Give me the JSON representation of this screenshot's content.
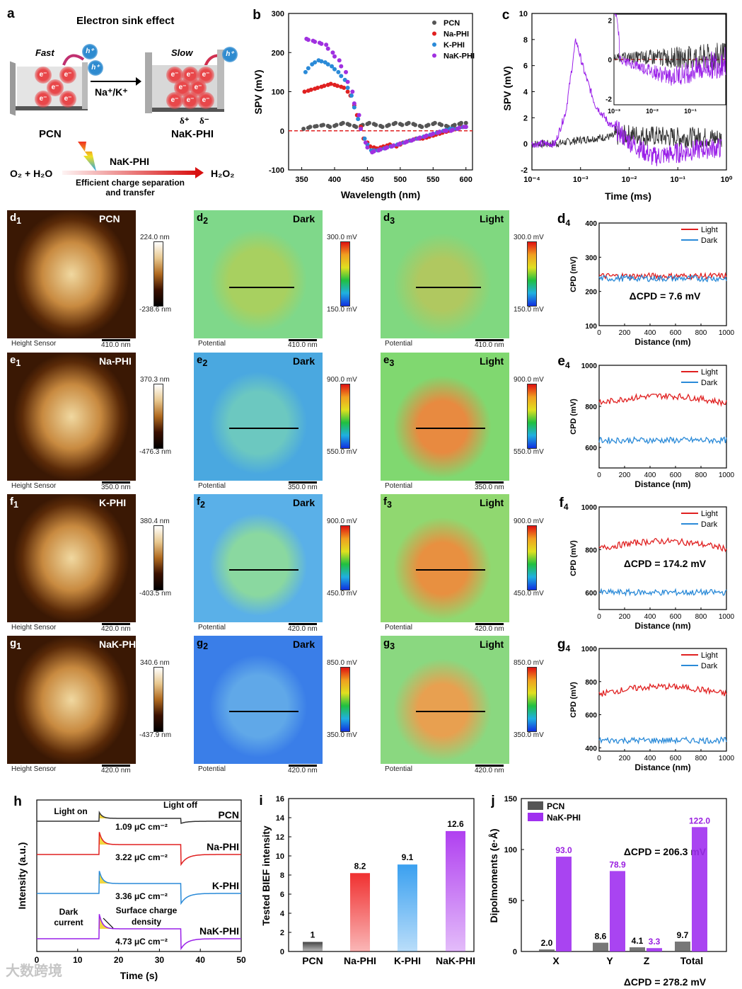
{
  "panel_a": {
    "letter": "a",
    "title": "Electron sink effect",
    "fast": "Fast",
    "slow": "Slow",
    "electron": "e⁻",
    "hole": "h⁺",
    "ions": "Na⁺/K⁺",
    "left_label": "PCN",
    "right_label": "NaK-PHI",
    "delta_plus": "δ⁺",
    "delta_minus": "δ⁻",
    "catalyst": "NaK-PHI",
    "reactants": "O₂ + H₂O",
    "product": "H₂O₂",
    "caption_line1": "Efficient charge separation",
    "caption_line2": "and transfer"
  },
  "chart_data": [
    {
      "id": "b",
      "type": "scatter",
      "letter": "b",
      "xlabel": "Wavelength (nm)",
      "ylabel": "SPV (mV)",
      "xlim": [
        330,
        610
      ],
      "ylim": [
        -100,
        300
      ],
      "xticks": [
        350,
        400,
        450,
        500,
        550,
        600
      ],
      "yticks": [
        -100,
        0,
        100,
        200,
        300
      ],
      "x": [
        355,
        365,
        375,
        385,
        395,
        405,
        415,
        425,
        435,
        445,
        455,
        465,
        475,
        485,
        495,
        505,
        515,
        525,
        535,
        545,
        555,
        565,
        575,
        585,
        595
      ],
      "series": [
        {
          "name": "PCN",
          "color": "#555555",
          "values": [
            5,
            10,
            12,
            15,
            10,
            15,
            20,
            15,
            10,
            15,
            20,
            15,
            10,
            15,
            20,
            15,
            20,
            15,
            10,
            15,
            20,
            15,
            10,
            15,
            20
          ]
        },
        {
          "name": "Na-PHI",
          "color": "#e02020",
          "values": [
            100,
            105,
            110,
            115,
            120,
            115,
            110,
            90,
            40,
            -20,
            -40,
            -45,
            -40,
            -35,
            -40,
            -30,
            -25,
            -20,
            -20,
            -15,
            -10,
            -5,
            0,
            5,
            10
          ]
        },
        {
          "name": "K-PHI",
          "color": "#2a8ad8",
          "values": [
            150,
            170,
            180,
            175,
            165,
            150,
            130,
            90,
            30,
            -20,
            -50,
            -50,
            -45,
            -40,
            -35,
            -30,
            -25,
            -20,
            -15,
            -10,
            -5,
            0,
            5,
            5,
            10
          ]
        },
        {
          "name": "NaK-PHI",
          "color": "#a030e0",
          "values": [
            235,
            230,
            225,
            220,
            200,
            180,
            150,
            100,
            40,
            -30,
            -55,
            -50,
            -45,
            -40,
            -35,
            -30,
            -25,
            -20,
            -15,
            -10,
            -5,
            0,
            0,
            5,
            10
          ]
        }
      ]
    },
    {
      "id": "c",
      "type": "line",
      "letter": "c",
      "xlabel": "Time (ms)",
      "ylabel": "SPV (mV)",
      "xscale": "log",
      "xlim": [
        0.0001,
        1
      ],
      "ylim": [
        -2,
        10
      ],
      "xticks": [
        "10⁻⁴",
        "10⁻³",
        "10⁻²",
        "10⁻¹",
        "10⁰"
      ],
      "yticks": [
        -2,
        0,
        2,
        4,
        6,
        8,
        10
      ],
      "series": [
        {
          "name": "PCN",
          "color": "#333333",
          "x": [
            0.0001,
            0.0003,
            0.001,
            0.003,
            0.01,
            0.03,
            0.1,
            0.3,
            0.8
          ],
          "values": [
            0,
            0,
            0.3,
            0.5,
            0.7,
            0.6,
            0.5,
            0.5,
            0.4
          ]
        },
        {
          "name": "NaK-PHI",
          "color": "#9a20e8",
          "x": [
            0.0001,
            0.0003,
            0.0005,
            0.0008,
            0.0012,
            0.002,
            0.004,
            0.01,
            0.03,
            0.1,
            0.3,
            0.8
          ],
          "values": [
            0,
            0,
            2.5,
            8,
            5.5,
            3,
            1.5,
            0.2,
            -1,
            -0.7,
            -0.4,
            -0.3
          ]
        }
      ],
      "inset": {
        "yticks": [
          -2,
          0,
          2
        ],
        "xticks": [
          "10⁻³",
          "10⁻²",
          "10⁻¹"
        ]
      }
    },
    {
      "id": "h",
      "type": "line",
      "letter": "h",
      "xlabel": "Time (s)",
      "ylabel": "Intensity (a.u.)",
      "xlim": [
        0,
        50
      ],
      "xticks": [
        0,
        10,
        20,
        30,
        40,
        50
      ],
      "light_on": "Light on",
      "light_off": "Light off",
      "dark_current": "Dark current",
      "surface_charge": "Surface charge density",
      "series": [
        {
          "name": "PCN",
          "color": "#333333",
          "charge": "1.09 μC cm⁻²",
          "peak": 0.4
        },
        {
          "name": "Na-PHI",
          "color": "#e02020",
          "charge": "3.22 μC cm⁻²",
          "peak": 1
        },
        {
          "name": "K-PHI",
          "color": "#2a8ad8",
          "charge": "3.36 μC cm⁻²",
          "peak": 1
        },
        {
          "name": "NaK-PHI",
          "color": "#9a20e8",
          "charge": "4.73 μC cm⁻²",
          "peak": 1.1
        }
      ]
    },
    {
      "id": "i",
      "type": "bar",
      "letter": "i",
      "ylabel": "Tested BIEF intensity",
      "ylim": [
        0,
        16
      ],
      "yticks": [
        0,
        2,
        4,
        6,
        8,
        10,
        12,
        14,
        16
      ],
      "categories": [
        "PCN",
        "Na-PHI",
        "K-PHI",
        "NaK-PHI"
      ],
      "values": [
        1,
        8.2,
        9.1,
        12.6
      ],
      "value_labels": [
        "1",
        "8.2",
        "9.1",
        "12.6"
      ],
      "colors": [
        "#444444",
        "#f03030",
        "#3aa0f0",
        "#b040f0"
      ]
    },
    {
      "id": "j",
      "type": "bar",
      "letter": "j",
      "ylabel": "Dipolmoments (e·Å)",
      "ylim": [
        0,
        150
      ],
      "yticks": [
        0,
        50,
        100,
        150
      ],
      "categories": [
        "X",
        "Y",
        "Z",
        "Total"
      ],
      "series": [
        {
          "name": "PCN",
          "color": "#555555",
          "values": [
            2.0,
            8.6,
            4.1,
            9.7
          ],
          "labels": [
            "2.0",
            "8.6",
            "4.1",
            "9.7"
          ]
        },
        {
          "name": "NaK-PHI",
          "color": "#a030f0",
          "values": [
            93.0,
            78.9,
            3.3,
            122.0
          ],
          "labels": [
            "93.0",
            "78.9",
            "3.3",
            "122.0"
          ]
        }
      ]
    }
  ],
  "kpfm_rows": [
    {
      "id": "d",
      "sample": "PCN",
      "height_max": "224.0 nm",
      "height_min": "-238.6 nm",
      "pot_max": "300.0 mV",
      "pot_min": "150.0 mV",
      "scale": "410.0 nm",
      "cpd": "ΔCPD = 7.6 mV",
      "ylim": [
        100,
        400
      ],
      "yticks": [
        100,
        200,
        300,
        400
      ],
      "light": 245,
      "dark": 238
    },
    {
      "id": "e",
      "sample": "Na-PHI",
      "height_max": "370.3 nm",
      "height_min": "-476.3 nm",
      "pot_max": "900.0 mV",
      "pot_min": "550.0 mV",
      "scale": "350.0 nm",
      "cpd": "ΔCPD = 174.2 mV",
      "ylim": [
        500,
        1000
      ],
      "yticks": [
        600,
        800,
        1000
      ],
      "light": 815,
      "dark": 635
    },
    {
      "id": "f",
      "sample": "K-PHI",
      "height_max": "380.4 nm",
      "height_min": "-403.5 nm",
      "pot_max": "900.0 mV",
      "pot_min": "450.0 mV",
      "scale": "420.0 nm",
      "cpd": "ΔCPD = 206.3 mV",
      "ylim": [
        520,
        1000
      ],
      "yticks": [
        600,
        800,
        1000
      ],
      "light": 805,
      "dark": 600
    },
    {
      "id": "g",
      "sample": "NaK-PHI",
      "height_max": "340.6 nm",
      "height_min": "-437.9 nm",
      "pot_max": "850.0 mV",
      "pot_min": "350.0 mV",
      "scale": "420.0 nm",
      "cpd": "ΔCPD = 278.2 mV",
      "ylim": [
        380,
        1000
      ],
      "yticks": [
        400,
        600,
        800,
        1000
      ],
      "light": 725,
      "dark": 445
    }
  ],
  "kpfm_labels": {
    "height_sensor": "Height Sensor",
    "potential": "Potential",
    "dark": "Dark",
    "light": "Light",
    "cpd_ylabel": "CPD (mV)",
    "distance": "Distance (nm)",
    "xticks": [
      0,
      200,
      400,
      600,
      800,
      1000
    ],
    "light_color": "#e02020",
    "dark_color": "#2a8ad8"
  },
  "watermark": "大数跨境"
}
